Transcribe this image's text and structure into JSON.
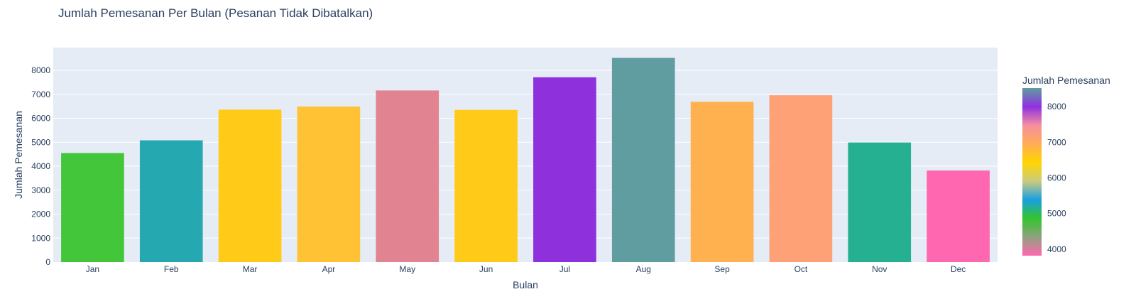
{
  "chart_data": {
    "type": "bar",
    "title": "Jumlah Pemesanan Per Bulan (Pesanan Tidak Dibatalkan)",
    "xlabel": "Bulan",
    "ylabel": "Jumlah Pemesanan",
    "categories": [
      "Jan",
      "Feb",
      "Mar",
      "Apr",
      "May",
      "Jun",
      "Jul",
      "Aug",
      "Sep",
      "Oct",
      "Nov",
      "Dec"
    ],
    "values": [
      4550,
      5080,
      6360,
      6490,
      7160,
      6350,
      7710,
      8520,
      6690,
      6960,
      4990,
      3820
    ],
    "colors": [
      "#43c63a",
      "#25a8b0",
      "#ffca18",
      "#ffc234",
      "#e18390",
      "#ffcb18",
      "#8f30dd",
      "#5f9da0",
      "#ffb14f",
      "#ffa177",
      "#26b092",
      "#ff68b1"
    ],
    "ylim": [
      0,
      8950
    ],
    "yticks": [
      0,
      1000,
      2000,
      3000,
      4000,
      5000,
      6000,
      7000,
      8000
    ],
    "grid": true,
    "colorbar": {
      "title": "Jumlah Pemesanan",
      "range": [
        3820,
        8520
      ],
      "ticks": [
        4000,
        5000,
        6000,
        7000,
        8000
      ],
      "stops": [
        "#ff68b1",
        "#8fa27e",
        "#34c42e",
        "#1a9fe0",
        "#cbcb80",
        "#ffd500",
        "#ffac55",
        "#f68fa0",
        "#9030e0",
        "#5f9da0"
      ]
    }
  }
}
